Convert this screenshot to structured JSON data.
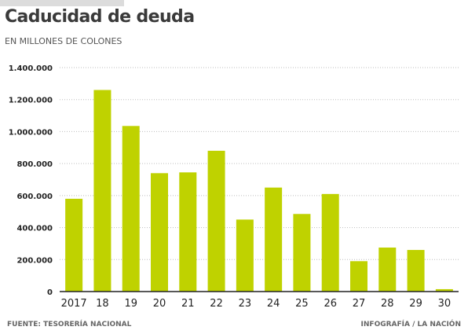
{
  "header": {
    "title": "Caducidad de deuda",
    "subtitle": "EN MILLONES DE COLONES"
  },
  "footer": {
    "source": "FUENTE: TESORERÍA NACIONAL",
    "credit": "INFOGRAFÍA / LA NACIÓN"
  },
  "colors": {
    "bar": "#bfd200",
    "grid": "#bdbdbd",
    "axis": "#222222"
  },
  "chart_data": {
    "type": "bar",
    "title": "Caducidad de deuda",
    "subtitle": "EN MILLONES DE COLONES",
    "categories": [
      "2017",
      "18",
      "19",
      "20",
      "21",
      "22",
      "23",
      "24",
      "25",
      "26",
      "27",
      "28",
      "29",
      "30"
    ],
    "values": [
      580000,
      1260000,
      1035000,
      740000,
      745000,
      880000,
      450000,
      650000,
      485000,
      610000,
      190000,
      275000,
      260000,
      15000
    ],
    "yticks": [
      "0",
      "200.000",
      "400.000",
      "600.000",
      "800.000",
      "1.000.000",
      "1.200.000",
      "1.400.000"
    ],
    "ylim": [
      0,
      1400000
    ],
    "grid": true,
    "xlabel": "",
    "ylabel": ""
  }
}
